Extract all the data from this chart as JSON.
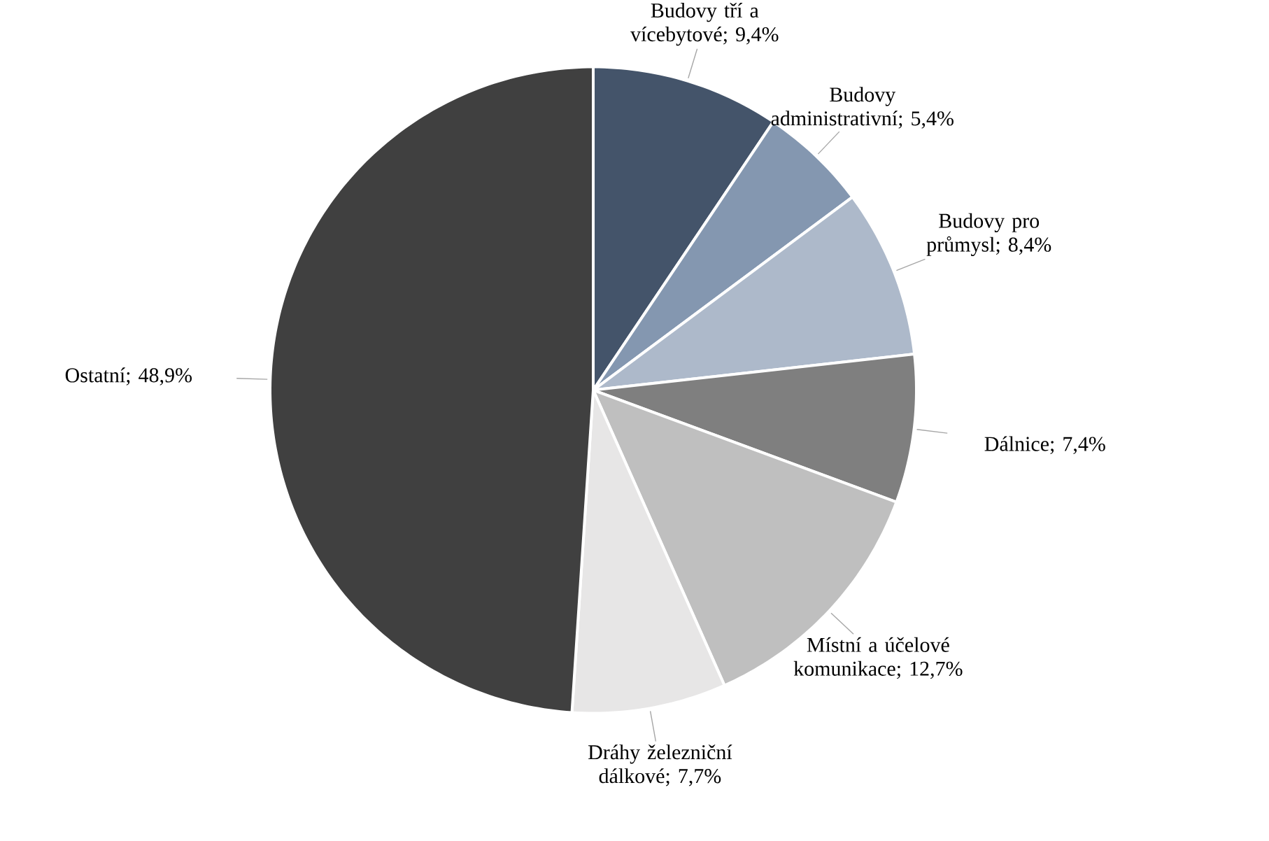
{
  "chart_data": {
    "type": "pie",
    "categories": [
      "Budovy tří a vícebytové",
      "Budovy administrativní",
      "Budovy pro průmysl",
      "Dálnice",
      "Místní a účelové komunikace",
      "Dráhy železniční dálkové",
      "Ostatní"
    ],
    "values": [
      9.4,
      5.4,
      8.4,
      7.4,
      12.7,
      7.7,
      48.9
    ],
    "value_labels": [
      "; 9,4%",
      "; 5,4%",
      "; 8,4%",
      "; 7,4%",
      "; 12,7%",
      "; 7,7%",
      "; 48,9%"
    ],
    "colors": [
      "#44546a",
      "#8497b0",
      "#adb9ca",
      "#7f7f7f",
      "#bfbfbf",
      "#e7e6e6",
      "#404040"
    ]
  }
}
